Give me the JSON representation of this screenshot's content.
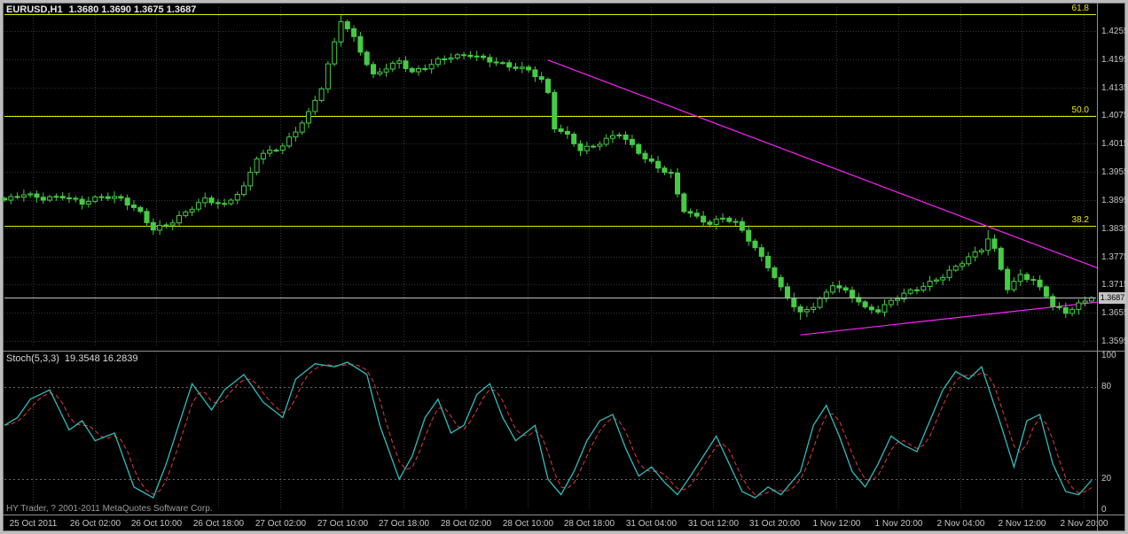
{
  "app": {
    "title": {
      "symbol_period": "EURUSD,H1",
      "ohlc": "1.3680 1.3690 1.3675 1.3687"
    },
    "copyright": "HY Trader, ? 2001-2011 MetaQuotes Software Corp."
  },
  "colors": {
    "background": "#000000",
    "border": "#bdbdbd",
    "grid": "#343434",
    "axis_text": "#c6c6c6",
    "candle": "#44cc44",
    "candle_bull_fill": "#000000",
    "fib": "#e8e800",
    "trendline": "#ff22ff",
    "price_line": "#c0c0c0",
    "stoch_main": "#2fbdbd",
    "stoch_signal": "#e03c3c",
    "separator": "#8f8f8f"
  },
  "chart_data": [
    {
      "type": "candlestick",
      "symbol": "EURUSD",
      "timeframe": "H1",
      "quote": {
        "open": 1.368,
        "high": 1.369,
        "low": 1.3675,
        "close": 1.3687
      },
      "last_price": 1.3687,
      "last_price_label": "1.3687",
      "ylim": [
        1.3582,
        1.4302
      ],
      "y_ticks": [
        1.4255,
        1.4195,
        1.4135,
        1.4075,
        1.4015,
        1.3955,
        1.3895,
        1.3835,
        1.3775,
        1.3715,
        1.3655,
        1.3595
      ],
      "x_ticks": [
        "25 Oct 2011",
        "26 Oct 02:00",
        "26 Oct 10:00",
        "26 Oct 18:00",
        "27 Oct 02:00",
        "27 Oct 10:00",
        "27 Oct 18:00",
        "28 Oct 02:00",
        "28 Oct 10:00",
        "28 Oct 18:00",
        "31 Oct 04:00",
        "31 Oct 12:00",
        "31 Oct 20:00",
        "1 Nov 12:00",
        "1 Nov 20:00",
        "2 Nov 04:00",
        "2 Nov 12:00",
        "2 Nov 20:00"
      ],
      "bars": 169,
      "close_path": [
        [
          0,
          1.3895
        ],
        [
          3,
          1.3908
        ],
        [
          6,
          1.3898
        ],
        [
          9,
          1.3903
        ],
        [
          12,
          1.3889
        ],
        [
          15,
          1.3903
        ],
        [
          18,
          1.3898
        ],
        [
          21,
          1.3868
        ],
        [
          23,
          1.3832
        ],
        [
          26,
          1.3849
        ],
        [
          29,
          1.3879
        ],
        [
          31,
          1.3897
        ],
        [
          34,
          1.3884
        ],
        [
          37,
          1.3922
        ],
        [
          39,
          1.3986
        ],
        [
          41,
          1.3999
        ],
        [
          43,
          1.401
        ],
        [
          45,
          1.4042
        ],
        [
          47,
          1.408
        ],
        [
          49,
          1.4135
        ],
        [
          51,
          1.423
        ],
        [
          52,
          1.4278
        ],
        [
          54,
          1.424
        ],
        [
          56,
          1.4185
        ],
        [
          57,
          1.416
        ],
        [
          59,
          1.4177
        ],
        [
          61,
          1.419
        ],
        [
          63,
          1.4167
        ],
        [
          65,
          1.4177
        ],
        [
          67,
          1.4192
        ],
        [
          69,
          1.42
        ],
        [
          72,
          1.4204
        ],
        [
          75,
          1.4192
        ],
        [
          78,
          1.418
        ],
        [
          81,
          1.4172
        ],
        [
          83,
          1.415
        ],
        [
          84,
          1.4122
        ],
        [
          85,
          1.405
        ],
        [
          87,
          1.4032
        ],
        [
          89,
          1.4002
        ],
        [
          91,
          1.401
        ],
        [
          93,
          1.4024
        ],
        [
          95,
          1.4037
        ],
        [
          97,
          1.401
        ],
        [
          99,
          1.3984
        ],
        [
          101,
          1.3964
        ],
        [
          103,
          1.395
        ],
        [
          104,
          1.3907
        ],
        [
          105,
          1.3874
        ],
        [
          107,
          1.3858
        ],
        [
          109,
          1.3844
        ],
        [
          111,
          1.3858
        ],
        [
          113,
          1.3846
        ],
        [
          114,
          1.383
        ],
        [
          116,
          1.3792
        ],
        [
          118,
          1.3754
        ],
        [
          120,
          1.3707
        ],
        [
          122,
          1.367
        ],
        [
          123,
          1.3654
        ],
        [
          125,
          1.367
        ],
        [
          127,
          1.3697
        ],
        [
          128,
          1.3716
        ],
        [
          130,
          1.37
        ],
        [
          132,
          1.368
        ],
        [
          133,
          1.3664
        ],
        [
          135,
          1.366
        ],
        [
          137,
          1.368
        ],
        [
          139,
          1.3696
        ],
        [
          141,
          1.3706
        ],
        [
          143,
          1.3719
        ],
        [
          145,
          1.3733
        ],
        [
          147,
          1.3753
        ],
        [
          149,
          1.3773
        ],
        [
          151,
          1.3791
        ],
        [
          152,
          1.3813
        ],
        [
          153,
          1.3789
        ],
        [
          154,
          1.3749
        ],
        [
          155,
          1.3707
        ],
        [
          156,
          1.3719
        ],
        [
          157,
          1.3736
        ],
        [
          159,
          1.3723
        ],
        [
          161,
          1.3693
        ],
        [
          162,
          1.3669
        ],
        [
          164,
          1.3656
        ],
        [
          166,
          1.3673
        ],
        [
          168,
          1.3687
        ]
      ],
      "fib_levels": [
        {
          "label": "61.8",
          "price": 1.429
        },
        {
          "label": "50.0",
          "price": 1.4073
        },
        {
          "label": "38.2",
          "price": 1.384
        }
      ],
      "trendlines": [
        {
          "from": [
            84,
            1.4193
          ],
          "to": [
            169,
            1.375
          ]
        },
        {
          "from": [
            123,
            1.3608
          ],
          "to": [
            169,
            1.3678
          ]
        }
      ]
    },
    {
      "type": "line",
      "name": "Stochastic Oscillator",
      "label": "Stoch(5,3,3)",
      "values_label": "19.3548 16.2839",
      "main_value": 19.3548,
      "signal_value": 16.2839,
      "ylim": [
        0,
        100
      ],
      "levels": [
        100,
        80,
        20,
        0
      ],
      "dashed_levels": [
        80,
        20
      ],
      "main_path": [
        [
          0,
          55
        ],
        [
          2,
          60
        ],
        [
          4,
          72
        ],
        [
          7,
          78
        ],
        [
          10,
          52
        ],
        [
          12,
          58
        ],
        [
          14,
          45
        ],
        [
          17,
          50
        ],
        [
          20,
          15
        ],
        [
          23,
          8
        ],
        [
          25,
          30
        ],
        [
          29,
          82
        ],
        [
          32,
          65
        ],
        [
          34,
          78
        ],
        [
          37,
          88
        ],
        [
          40,
          70
        ],
        [
          43,
          60
        ],
        [
          45,
          85
        ],
        [
          48,
          95
        ],
        [
          51,
          93
        ],
        [
          53,
          96
        ],
        [
          56,
          88
        ],
        [
          58,
          55
        ],
        [
          61,
          20
        ],
        [
          63,
          35
        ],
        [
          65,
          60
        ],
        [
          67,
          72
        ],
        [
          69,
          50
        ],
        [
          71,
          55
        ],
        [
          73,
          75
        ],
        [
          75,
          82
        ],
        [
          77,
          60
        ],
        [
          79,
          45
        ],
        [
          82,
          55
        ],
        [
          84,
          20
        ],
        [
          86,
          10
        ],
        [
          88,
          25
        ],
        [
          90,
          45
        ],
        [
          92,
          58
        ],
        [
          94,
          62
        ],
        [
          96,
          40
        ],
        [
          98,
          22
        ],
        [
          100,
          28
        ],
        [
          102,
          18
        ],
        [
          104,
          10
        ],
        [
          106,
          22
        ],
        [
          108,
          35
        ],
        [
          110,
          48
        ],
        [
          112,
          30
        ],
        [
          114,
          12
        ],
        [
          116,
          8
        ],
        [
          118,
          15
        ],
        [
          120,
          10
        ],
        [
          123,
          25
        ],
        [
          125,
          55
        ],
        [
          127,
          68
        ],
        [
          129,
          48
        ],
        [
          131,
          25
        ],
        [
          133,
          15
        ],
        [
          135,
          30
        ],
        [
          137,
          48
        ],
        [
          139,
          42
        ],
        [
          141,
          38
        ],
        [
          143,
          58
        ],
        [
          145,
          78
        ],
        [
          147,
          90
        ],
        [
          149,
          85
        ],
        [
          151,
          93
        ],
        [
          154,
          55
        ],
        [
          156,
          28
        ],
        [
          158,
          58
        ],
        [
          160,
          62
        ],
        [
          162,
          30
        ],
        [
          164,
          12
        ],
        [
          166,
          10
        ],
        [
          168,
          19.35
        ]
      ]
    }
  ]
}
